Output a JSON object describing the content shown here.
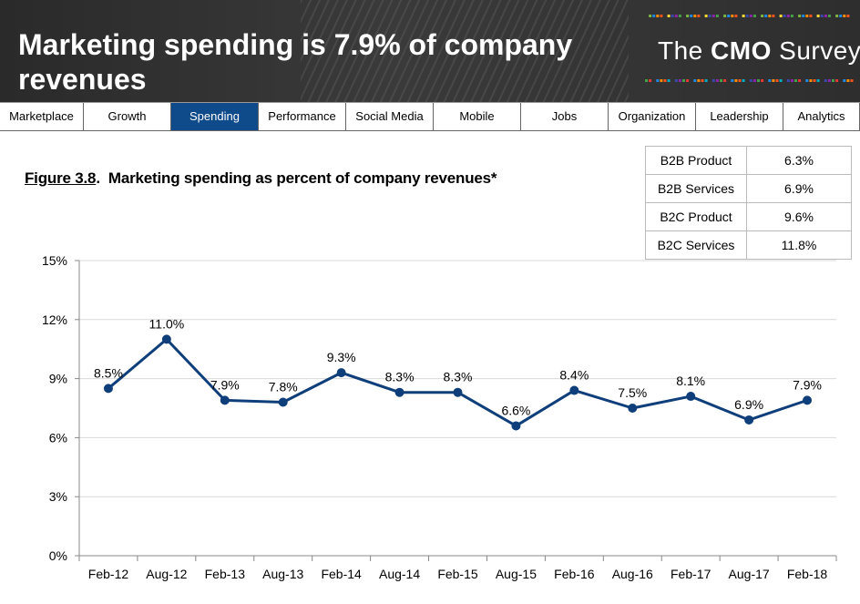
{
  "header": {
    "title": "Marketing spending is 7.9% of company revenues",
    "logo": {
      "prefix": "The ",
      "brand": "CMO",
      "suffix": " Survey"
    }
  },
  "nav": {
    "tabs": [
      {
        "label": "Marketplace",
        "active": false
      },
      {
        "label": "Growth",
        "active": false
      },
      {
        "label": "Spending",
        "active": true
      },
      {
        "label": "Performance",
        "active": false
      },
      {
        "label": "Social Media",
        "active": false
      },
      {
        "label": "Mobile",
        "active": false
      },
      {
        "label": "Jobs",
        "active": false
      },
      {
        "label": "Organization",
        "active": false
      },
      {
        "label": "Leadership",
        "active": false
      },
      {
        "label": "Analytics",
        "active": false
      }
    ]
  },
  "figure": {
    "number": "Figure 3.8",
    "caption": "Marketing spending as percent of company revenues*"
  },
  "segments_table": [
    {
      "label": "B2B Product",
      "value": "6.3%"
    },
    {
      "label": "B2B Services",
      "value": "6.9%"
    },
    {
      "label": "B2C Product",
      "value": "9.6%"
    },
    {
      "label": "B2C Services",
      "value": "11.8%"
    }
  ],
  "colors": {
    "line": "#0f3f7a",
    "active_tab": "#0f4a8a",
    "grid": "#d9d9d9"
  },
  "chart_data": {
    "type": "line",
    "title": "",
    "xlabel": "",
    "ylabel": "",
    "categories": [
      "Feb-12",
      "Aug-12",
      "Feb-13",
      "Aug-13",
      "Feb-14",
      "Aug-14",
      "Feb-15",
      "Aug-15",
      "Feb-16",
      "Aug-16",
      "Feb-17",
      "Aug-17",
      "Feb-18"
    ],
    "values": [
      8.5,
      11.0,
      7.9,
      7.8,
      9.3,
      8.3,
      8.3,
      6.6,
      8.4,
      7.5,
      8.1,
      6.9,
      7.9
    ],
    "data_labels": [
      "8.5%",
      "11.0%",
      "7.9%",
      "7.8%",
      "9.3%",
      "8.3%",
      "8.3%",
      "6.6%",
      "8.4%",
      "7.5%",
      "8.1%",
      "6.9%",
      "7.9%"
    ],
    "ylim": [
      0,
      15
    ],
    "yticks": [
      0,
      3,
      6,
      9,
      12,
      15
    ],
    "ytick_labels": [
      "0%",
      "3%",
      "6%",
      "9%",
      "12%",
      "15%"
    ],
    "grid": true,
    "legend": "none"
  }
}
